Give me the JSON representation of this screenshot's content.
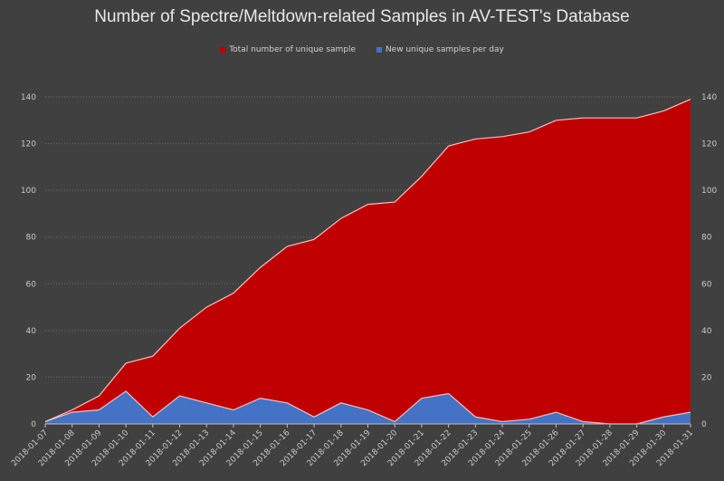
{
  "chart_data": {
    "type": "area",
    "title": "Number of Spectre/Meltdown-related Samples in AV-TEST's Database",
    "xlabel": "",
    "ylabel": "",
    "ylim": [
      0,
      140
    ],
    "yticks": [
      0,
      20,
      40,
      60,
      80,
      100,
      120,
      140
    ],
    "grid": true,
    "legend_position": "top",
    "categories": [
      "2018-01-07",
      "2018-01-08",
      "2018-01-09",
      "2018-01-10",
      "2018-01-11",
      "2018-01-12",
      "2018-01-13",
      "2018-01-14",
      "2018-01-15",
      "2018-01-16",
      "2018-01-17",
      "2018-01-18",
      "2018-01-19",
      "2018-01-20",
      "2018-01-21",
      "2018-01-22",
      "2018-01-23",
      "2018-01-24",
      "2018-01-25",
      "2018-01-26",
      "2018-01-27",
      "2018-01-28",
      "2018-01-29",
      "2018-01-30",
      "2018-01-31"
    ],
    "series": [
      {
        "name": "Total number of unique sample",
        "color": "#c00000",
        "values": [
          1,
          6,
          12,
          26,
          29,
          41,
          50,
          56,
          67,
          76,
          79,
          88,
          94,
          95,
          106,
          119,
          122,
          123,
          125,
          130,
          131,
          131,
          131,
          134,
          139
        ]
      },
      {
        "name": "New unique samples per day",
        "color": "#4472c4",
        "values": [
          1,
          5,
          6,
          14,
          3,
          12,
          9,
          6,
          11,
          9,
          3,
          9,
          6,
          1,
          11,
          13,
          3,
          1,
          2,
          5,
          1,
          0,
          0,
          3,
          5
        ]
      }
    ]
  }
}
